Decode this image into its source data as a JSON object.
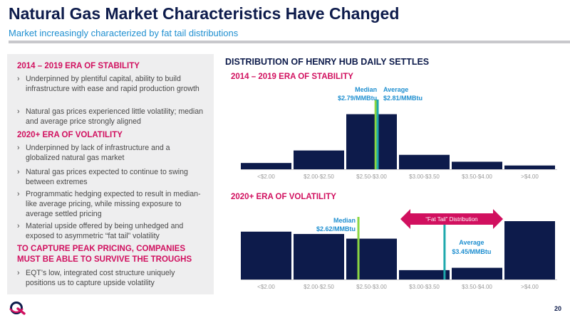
{
  "header": {
    "title": "Natural Gas Market Characteristics Have Changed",
    "subtitle": "Market increasingly characterized by fat tail distributions"
  },
  "left_panel": {
    "era1_heading": "2014 – 2019 ERA OF STABILITY",
    "era1_bullets": [
      "Underpinned by plentiful capital, ability to build infrastructure with ease and rapid production growth",
      "Natural gas prices experienced little volatility; median and average price strongly aligned"
    ],
    "era2_heading": "2020+ ERA OF VOLATILITY",
    "era2_bullets": [
      "Underpinned by lack of infrastructure and a globalized natural gas market",
      "Natural gas prices expected to continue to swing between extremes",
      "Programmatic hedging expected to result in median-like average pricing, while missing exposure to average settled pricing",
      "Material upside offered by being unhedged and exposed to asymmetric “fat tail” volatility"
    ],
    "callout": "TO CAPTURE PEAK PRICING, COMPANIES MUST BE ABLE TO SURVIVE THE TROUGHS",
    "eqt_bullets": [
      "EQT’s low, integrated cost structure uniquely positions us to capture upside volatility"
    ],
    "bullet_marker": "›"
  },
  "chart_heading": "DISTRIBUTION OF HENRY HUB DAILY SETTLES",
  "colors": {
    "navy": "#0d1b4b",
    "magenta": "#d1105f",
    "blue": "#1f8fd0",
    "median_line": "#8bd642",
    "average_line": "#1ea8ac",
    "axis": "#c8c8cc"
  },
  "chart_data": [
    {
      "type": "bar",
      "title": "2014 – 2019 ERA OF STABILITY",
      "categories": [
        "<$2.00",
        "$2.00-$2.50",
        "$2.50-$3.00",
        "$3.00-$3.50",
        "$3.50-$4.00",
        ">$4.00"
      ],
      "values": [
        10,
        30,
        88,
        23,
        12,
        6
      ],
      "ylim": [
        0,
        100
      ],
      "grid": false,
      "markers": [
        {
          "label": "Median",
          "value_label": "$2.79/MMBtu",
          "x": 2.79
        },
        {
          "label": "Average",
          "value_label": "$2.81/MMBtu",
          "x": 2.81
        }
      ]
    },
    {
      "type": "bar",
      "title": "2020+ ERA OF VOLATILITY",
      "categories": [
        "<$2.00",
        "$2.00-$2.50",
        "$2.50-$3.00",
        "$3.00-$3.50",
        "$3.50-$4.00",
        ">$4.00"
      ],
      "values": [
        82,
        78,
        70,
        16,
        20,
        100
      ],
      "ylim": [
        0,
        100
      ],
      "grid": false,
      "markers": [
        {
          "label": "Median",
          "value_label": "$2.62/MMBtu",
          "x": 2.62
        },
        {
          "label": "Average",
          "value_label": "$3.45/MMBtu",
          "x": 3.45
        }
      ],
      "annotation": "“Fat Tail” Distribution"
    }
  ],
  "page_number": "20"
}
